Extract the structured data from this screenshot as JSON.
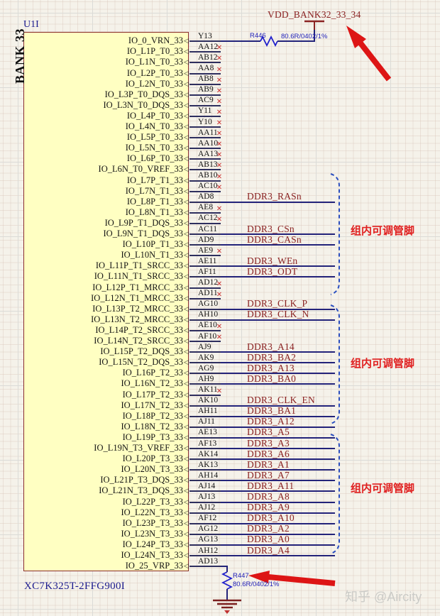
{
  "designator": "U1I",
  "bank_title": "BANK 33",
  "part_number": "XC7K325T-2FFG900I",
  "power": {
    "net": "VDD_BANK32_33_34",
    "resistor": {
      "ref": "R446",
      "value": "80.6R/0402/1%"
    }
  },
  "ground": {
    "resistor": {
      "ref": "R447",
      "value": "80.6R/0402/1%"
    }
  },
  "annotations": {
    "group_label": "组内可调管脚",
    "watermark": "知乎 @Aircity"
  },
  "colors": {
    "body_fill": "#FFFFC2",
    "body_border": "#8B2E2E",
    "wire": "#23237A",
    "net_label": "#8B2323",
    "resistor": "#2020CC",
    "no_connect": "#CC3333",
    "brace": "#2B4FC0",
    "annotation_red": "#E02020",
    "background": "#F5F2EA"
  },
  "pins": [
    {
      "name": "IO_0_VRN_33",
      "num": "Y13",
      "conn": "power"
    },
    {
      "name": "IO_L1P_T0_33",
      "num": "AA12",
      "conn": "nc"
    },
    {
      "name": "IO_L1N_T0_33",
      "num": "AB12",
      "conn": "nc"
    },
    {
      "name": "IO_L2P_T0_33",
      "num": "AA8",
      "conn": "nc"
    },
    {
      "name": "IO_L2N_T0_33",
      "num": "AB8",
      "conn": "nc"
    },
    {
      "name": "IO_L3P_T0_DQS_33",
      "num": "AB9",
      "conn": "nc"
    },
    {
      "name": "IO_L3N_T0_DQS_33",
      "num": "AC9",
      "conn": "nc"
    },
    {
      "name": "IO_L4P_T0_33",
      "num": "Y11",
      "conn": "nc"
    },
    {
      "name": "IO_L4N_T0_33",
      "num": "Y10",
      "conn": "nc"
    },
    {
      "name": "IO_L5P_T0_33",
      "num": "AA11",
      "conn": "nc"
    },
    {
      "name": "IO_L5N_T0_33",
      "num": "AA10",
      "conn": "nc"
    },
    {
      "name": "IO_L6P_T0_33",
      "num": "AA13",
      "conn": "nc"
    },
    {
      "name": "IO_L6N_T0_VREF_33",
      "num": "AB13",
      "conn": "nc"
    },
    {
      "name": "IO_L7P_T1_33",
      "num": "AB10",
      "conn": "nc"
    },
    {
      "name": "IO_L7N_T1_33",
      "num": "AC10",
      "conn": "nc"
    },
    {
      "name": "IO_L8P_T1_33",
      "num": "AD8",
      "conn": "net",
      "net": "DDR3_RASn"
    },
    {
      "name": "IO_L8N_T1_33",
      "num": "AE8",
      "conn": "nc"
    },
    {
      "name": "IO_L9P_T1_DQS_33",
      "num": "AC12",
      "conn": "nc"
    },
    {
      "name": "IO_L9N_T1_DQS_33",
      "num": "AC11",
      "conn": "net",
      "net": "DDR3_CSn"
    },
    {
      "name": "IO_L10P_T1_33",
      "num": "AD9",
      "conn": "net",
      "net": "DDR3_CASn"
    },
    {
      "name": "IO_L10N_T1_33",
      "num": "AE9",
      "conn": "nc"
    },
    {
      "name": "IO_L11P_T1_SRCC_33",
      "num": "AE11",
      "conn": "net",
      "net": "DDR3_WEn"
    },
    {
      "name": "IO_L11N_T1_SRCC_33",
      "num": "AF11",
      "conn": "net",
      "net": "DDR3_ODT"
    },
    {
      "name": "IO_L12P_T1_MRCC_33",
      "num": "AD12",
      "conn": "nc"
    },
    {
      "name": "IO_L12N_T1_MRCC_33",
      "num": "AD11",
      "conn": "nc"
    },
    {
      "name": "IO_L13P_T2_MRCC_33",
      "num": "AG10",
      "conn": "net",
      "net": "DDR3_CLK_P"
    },
    {
      "name": "IO_L13N_T2_MRCC_33",
      "num": "AH10",
      "conn": "net",
      "net": "DDR3_CLK_N"
    },
    {
      "name": "IO_L14P_T2_SRCC_33",
      "num": "AE10",
      "conn": "nc"
    },
    {
      "name": "IO_L14N_T2_SRCC_33",
      "num": "AF10",
      "conn": "nc"
    },
    {
      "name": "IO_L15P_T2_DQS_33",
      "num": "AJ9",
      "conn": "net",
      "net": "DDR3_A14"
    },
    {
      "name": "IO_L15N_T2_DQS_33",
      "num": "AK9",
      "conn": "net",
      "net": "DDR3_BA2"
    },
    {
      "name": "IO_L16P_T2_33",
      "num": "AG9",
      "conn": "net",
      "net": "DDR3_A13"
    },
    {
      "name": "IO_L16N_T2_33",
      "num": "AH9",
      "conn": "net",
      "net": "DDR3_BA0"
    },
    {
      "name": "IO_L17P_T2_33",
      "num": "AK11",
      "conn": "nc"
    },
    {
      "name": "IO_L17N_T2_33",
      "num": "AK10",
      "conn": "net",
      "net": "DDR3_CLK_EN"
    },
    {
      "name": "IO_L18P_T2_33",
      "num": "AH11",
      "conn": "net",
      "net": "DDR3_BA1"
    },
    {
      "name": "IO_L18N_T2_33",
      "num": "AJ11",
      "conn": "net",
      "net": "DDR3_A12"
    },
    {
      "name": "IO_L19P_T3_33",
      "num": "AE13",
      "conn": "net",
      "net": "DDR3_A5"
    },
    {
      "name": "IO_L19N_T3_VREF_33",
      "num": "AF13",
      "conn": "net",
      "net": "DDR3_A3"
    },
    {
      "name": "IO_L20P_T3_33",
      "num": "AK14",
      "conn": "net",
      "net": "DDR3_A6"
    },
    {
      "name": "IO_L20N_T3_33",
      "num": "AK13",
      "conn": "net",
      "net": "DDR3_A1"
    },
    {
      "name": "IO_L21P_T3_DQS_33",
      "num": "AH14",
      "conn": "net",
      "net": "DDR3_A7"
    },
    {
      "name": "IO_L21N_T3_DQS_33",
      "num": "AJ14",
      "conn": "net",
      "net": "DDR3_A11"
    },
    {
      "name": "IO_L22P_T3_33",
      "num": "AJ13",
      "conn": "net",
      "net": "DDR3_A8"
    },
    {
      "name": "IO_L22N_T3_33",
      "num": "AJ12",
      "conn": "net",
      "net": "DDR3_A9"
    },
    {
      "name": "IO_L23P_T3_33",
      "num": "AF12",
      "conn": "net",
      "net": "DDR3_A10"
    },
    {
      "name": "IO_L23N_T3_33",
      "num": "AG12",
      "conn": "net",
      "net": "DDR3_A2"
    },
    {
      "name": "IO_L24P_T3_33",
      "num": "AG13",
      "conn": "net",
      "net": "DDR3_A0"
    },
    {
      "name": "IO_L24N_T3_33",
      "num": "AH12",
      "conn": "net",
      "net": "DDR3_A4"
    },
    {
      "name": "IO_25_VRP_33",
      "num": "AD13",
      "conn": "ground"
    }
  ]
}
